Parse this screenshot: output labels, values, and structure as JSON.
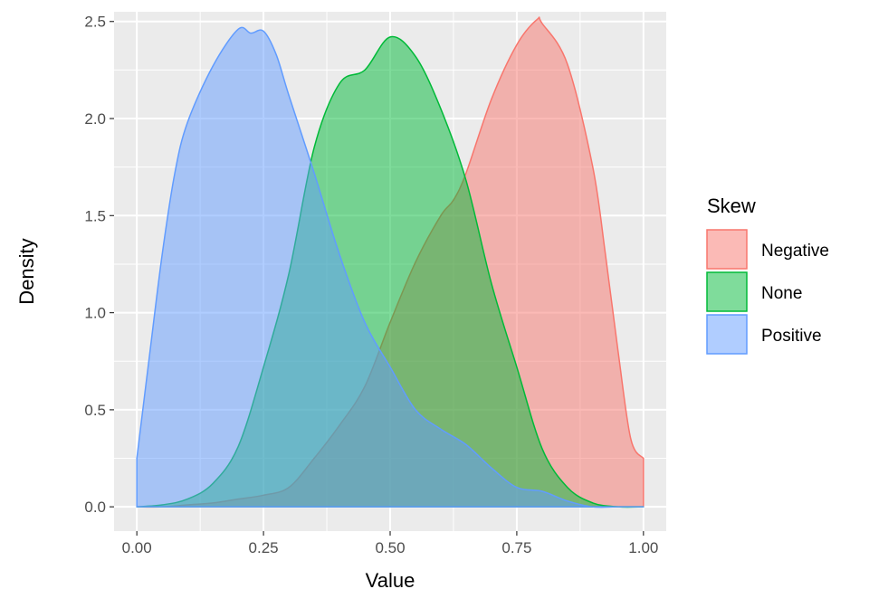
{
  "chart_data": {
    "type": "area",
    "subtype": "density",
    "title": "",
    "xlabel": "Value",
    "ylabel": "Density",
    "xlim": [
      -0.045,
      1.045
    ],
    "ylim": [
      -0.125,
      2.55
    ],
    "x_ticks": [
      0.0,
      0.25,
      0.5,
      0.75,
      1.0
    ],
    "x_tick_labels": [
      "0.00",
      "0.25",
      "0.50",
      "0.75",
      "1.00"
    ],
    "y_ticks": [
      0.0,
      0.5,
      1.0,
      1.5,
      2.0,
      2.5
    ],
    "y_tick_labels": [
      "0.0",
      "0.5",
      "1.0",
      "1.5",
      "2.0",
      "2.5"
    ],
    "grid": true,
    "background": "#EBEBEB",
    "legend": {
      "title": "Skew",
      "placement": "right"
    },
    "series": [
      {
        "name": "Negative",
        "color": "#F8766D",
        "x": [
          0.0,
          0.05,
          0.1,
          0.15,
          0.2,
          0.25,
          0.3,
          0.35,
          0.4,
          0.45,
          0.5,
          0.55,
          0.6,
          0.625,
          0.65,
          0.7,
          0.75,
          0.79,
          0.8,
          0.85,
          0.9,
          0.925,
          0.95,
          0.975,
          1.0
        ],
        "y": [
          0.0,
          0.0,
          0.01,
          0.02,
          0.04,
          0.06,
          0.1,
          0.25,
          0.42,
          0.62,
          0.95,
          1.26,
          1.5,
          1.58,
          1.72,
          2.1,
          2.38,
          2.51,
          2.49,
          2.28,
          1.75,
          1.3,
          0.8,
          0.35,
          0.25
        ]
      },
      {
        "name": "None",
        "color": "#00BA38",
        "x": [
          0.0,
          0.05,
          0.1,
          0.15,
          0.2,
          0.25,
          0.3,
          0.35,
          0.4,
          0.45,
          0.5,
          0.55,
          0.6,
          0.65,
          0.7,
          0.75,
          0.8,
          0.85,
          0.9,
          0.95,
          1.0
        ],
        "y": [
          0.0,
          0.01,
          0.04,
          0.12,
          0.31,
          0.72,
          1.2,
          1.85,
          2.18,
          2.25,
          2.42,
          2.32,
          2.05,
          1.68,
          1.15,
          0.72,
          0.3,
          0.1,
          0.02,
          0.0,
          0.0
        ]
      },
      {
        "name": "Positive",
        "color": "#619CFF",
        "x": [
          0.0,
          0.025,
          0.05,
          0.075,
          0.1,
          0.15,
          0.2,
          0.225,
          0.25,
          0.275,
          0.3,
          0.35,
          0.4,
          0.45,
          0.5,
          0.55,
          0.6,
          0.65,
          0.7,
          0.75,
          0.8,
          0.85,
          0.9,
          0.95,
          1.0
        ],
        "y": [
          0.25,
          0.78,
          1.3,
          1.72,
          1.98,
          2.27,
          2.46,
          2.44,
          2.45,
          2.33,
          2.12,
          1.72,
          1.3,
          0.95,
          0.72,
          0.5,
          0.4,
          0.32,
          0.2,
          0.1,
          0.08,
          0.03,
          0.0,
          0.0,
          0.0
        ]
      }
    ]
  }
}
